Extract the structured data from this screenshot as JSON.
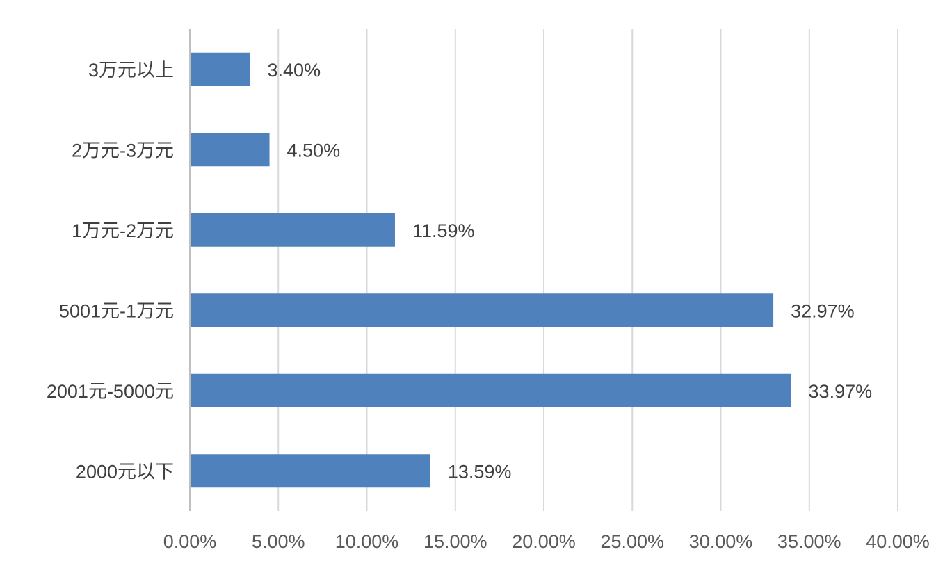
{
  "chart_data": {
    "type": "bar",
    "orientation": "horizontal",
    "title": "",
    "xlabel": "",
    "ylabel": "",
    "categories": [
      "3万元以上",
      "2万元-3万元",
      "1万元-2万元",
      "5001元-1万元",
      "2001元-5000元",
      "2000元以下"
    ],
    "values": [
      3.4,
      4.5,
      11.59,
      32.97,
      33.97,
      13.59
    ],
    "data_labels": [
      "3.40%",
      "4.50%",
      "11.59%",
      "32.97%",
      "33.97%",
      "13.59%"
    ],
    "xlim": [
      0,
      40
    ],
    "x_ticks": [
      0,
      5,
      10,
      15,
      20,
      25,
      30,
      35,
      40
    ],
    "x_tick_labels": [
      "0.00%",
      "5.00%",
      "10.00%",
      "15.00%",
      "20.00%",
      "25.00%",
      "30.00%",
      "35.00%",
      "40.00%"
    ],
    "grid": true,
    "legend": "none",
    "bar_color": "#4f81bd",
    "grid_color": "#d9d9d9"
  }
}
